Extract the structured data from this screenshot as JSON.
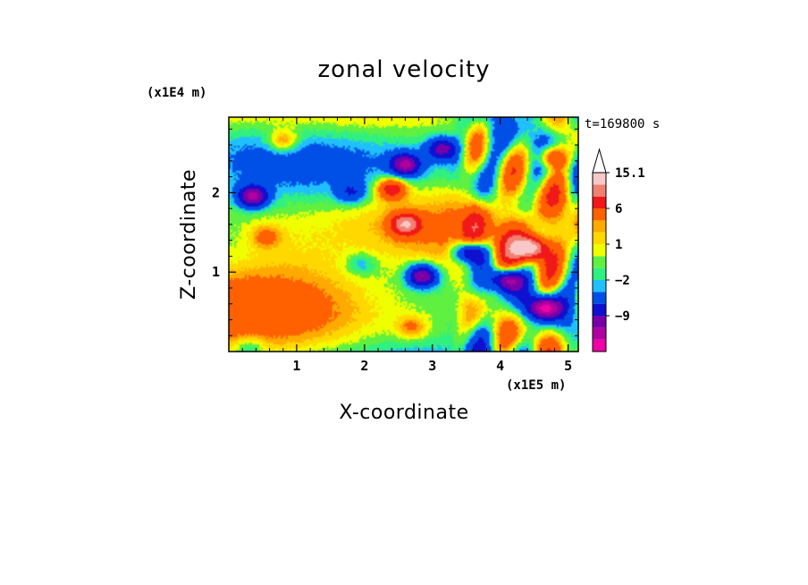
{
  "chart_data": {
    "type": "heatmap",
    "title": "zonal velocity",
    "xlabel": "X-coordinate",
    "ylabel": "Z-coordinate",
    "x_unit": "(x1E5 m)",
    "y_unit": "(x1E4 m)",
    "time_label": "t=169800 s",
    "xlim": [
      0,
      5.15
    ],
    "ylim": [
      0,
      2.95
    ],
    "x_ticks": [
      1,
      2,
      3,
      4,
      5
    ],
    "y_ticks": [
      1,
      2
    ],
    "colorbar": {
      "levels": [
        -15,
        -12,
        -9,
        -6,
        -3,
        -2,
        -1,
        0,
        1,
        2,
        3,
        6,
        9,
        12,
        15.1
      ],
      "colors": [
        "#f000a8",
        "#b000a0",
        "#7800a8",
        "#1010d0",
        "#0050e8",
        "#20c0ff",
        "#30f080",
        "#60f040",
        "#f0ff00",
        "#ffd800",
        "#ffaa00",
        "#ff6000",
        "#f01818",
        "#f08070",
        "#f8c8c8"
      ],
      "labels": [
        "15.1",
        "6",
        "1",
        "-2",
        "-9"
      ],
      "extend_max": true
    },
    "field_features": [
      {
        "kind": "max",
        "x": 2.6,
        "z": 1.6,
        "u": 10
      },
      {
        "kind": "max",
        "x": 2.4,
        "z": 2.05,
        "u": 9
      },
      {
        "kind": "max",
        "x": 4.45,
        "z": 1.3,
        "u": 13
      },
      {
        "kind": "max",
        "x": 4.75,
        "z": 2.45,
        "u": 9
      },
      {
        "kind": "max",
        "x": 0.55,
        "z": 1.45,
        "u": 4
      },
      {
        "kind": "max",
        "x": 2.7,
        "z": 0.3,
        "u": 4
      },
      {
        "kind": "max",
        "x": 0.8,
        "z": 2.65,
        "u": 5
      },
      {
        "kind": "min",
        "x": 0.35,
        "z": 1.95,
        "u": -12
      },
      {
        "kind": "min",
        "x": 1.8,
        "z": 2.0,
        "u": -5
      },
      {
        "kind": "min",
        "x": 2.6,
        "z": 2.35,
        "u": -11
      },
      {
        "kind": "min",
        "x": 3.55,
        "z": 1.25,
        "u": -12
      },
      {
        "kind": "min",
        "x": 2.85,
        "z": 0.95,
        "u": -12
      },
      {
        "kind": "min",
        "x": 4.65,
        "z": 0.55,
        "u": -14
      },
      {
        "kind": "min",
        "x": 4.1,
        "z": 0.9,
        "u": -12
      },
      {
        "kind": "min",
        "x": 1.95,
        "z": 1.1,
        "u": -3
      },
      {
        "kind": "min",
        "x": 3.15,
        "z": 2.55,
        "u": -9
      },
      {
        "kind": "min",
        "x": 0.3,
        "z": 0.05,
        "u": -3
      }
    ]
  }
}
